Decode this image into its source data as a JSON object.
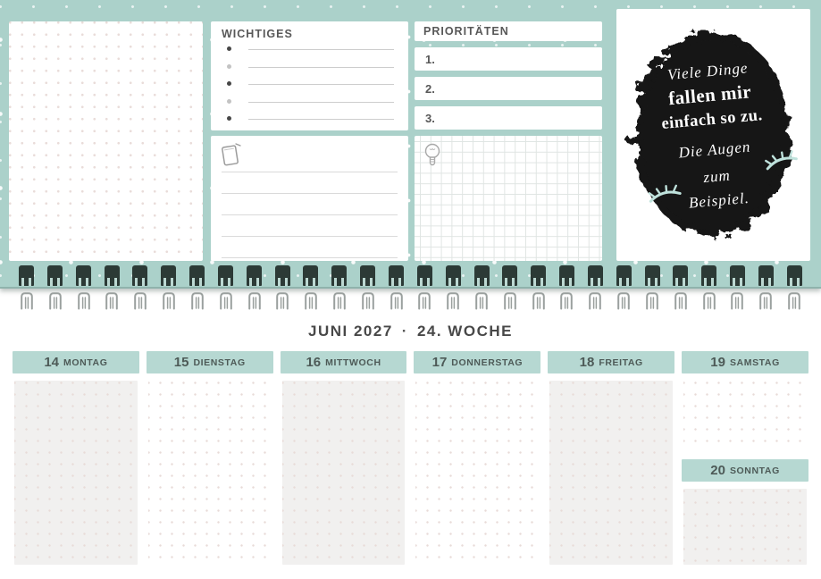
{
  "colors": {
    "mint_background": "#abd1ca",
    "day_header_mint": "#b6d8d2",
    "binding_wire_dark": "#2c3a36",
    "binding_wire_light": "#9aa09e",
    "quote_blob_black": "#161616",
    "eyelash_mint": "#bfe2dc",
    "dot_pink": "#e8dbd8",
    "text_dark": "#4d5a57"
  },
  "top_page": {
    "dot_grid_panel": {},
    "wichtiges": {
      "title": "Wichtiges",
      "rows": 5
    },
    "prioritaeten": {
      "title": "Prioritäten",
      "items": [
        "1.",
        "2.",
        "3."
      ]
    },
    "notes_panel": {
      "icon": "note-icon",
      "lines": 5
    },
    "ideas_panel": {
      "icon": "lightbulb-icon"
    },
    "quote": {
      "line1": "Viele Dinge",
      "line2": "fallen mir",
      "line3": "einfach so zu.",
      "line4": "Die Augen",
      "line5": "zum",
      "line6": "Beispiel.",
      "icon": "closed-eye-icon"
    }
  },
  "binding": {
    "loop_count": 28
  },
  "week_page": {
    "title": {
      "month": "Juni 2027",
      "separator": "·",
      "week": "24. Woche"
    },
    "days": [
      {
        "number": "14",
        "name": "Montag",
        "shade": "gray"
      },
      {
        "number": "15",
        "name": "Dienstag",
        "shade": "white"
      },
      {
        "number": "16",
        "name": "Mittwoch",
        "shade": "gray"
      },
      {
        "number": "17",
        "name": "Donnerstag",
        "shade": "white"
      },
      {
        "number": "18",
        "name": "Freitag",
        "shade": "gray"
      },
      {
        "number": "19",
        "name": "Samstag",
        "shade": "white"
      },
      {
        "number": "20",
        "name": "Sonntag",
        "shade": "gray"
      }
    ]
  }
}
